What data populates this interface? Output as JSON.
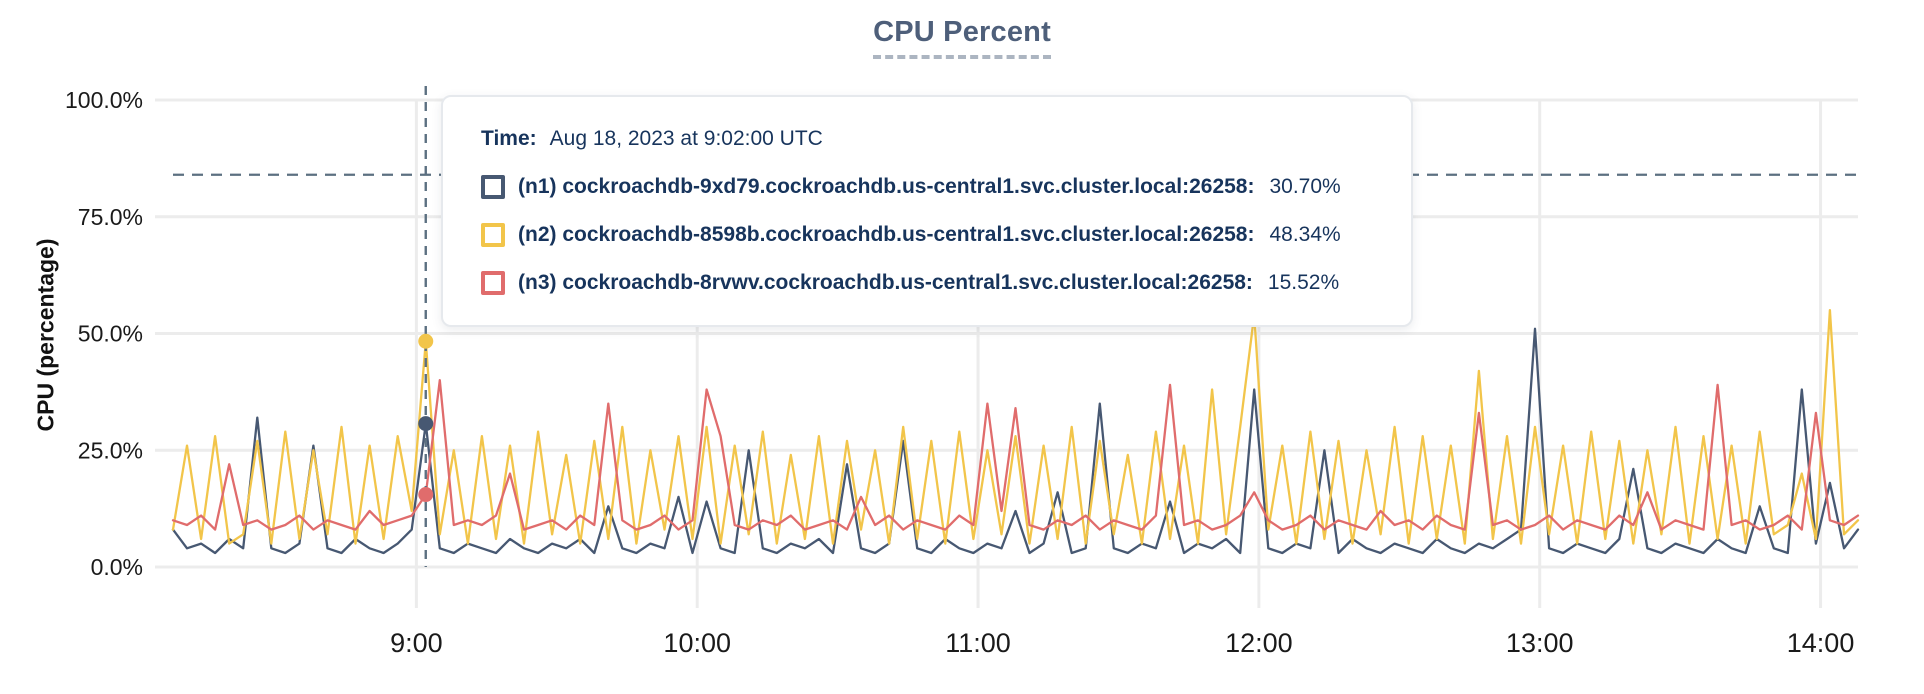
{
  "chart": {
    "title": "CPU Percent",
    "ylabel": "CPU (percentage)"
  },
  "colors": {
    "title": "#4E5F7A",
    "tooltip_text": "#17345C",
    "grid": "#ECECEC",
    "axis_text": "#1A1A1A",
    "dashed_guides": "#5C7081",
    "series_n1": "#475872",
    "series_n2": "#F2C54A",
    "series_n3": "#E06C6C"
  },
  "tooltip": {
    "time_label": "Time:",
    "time_value": "Aug 18, 2023 at 9:02:00 UTC",
    "rows": [
      {
        "node": "n1",
        "label": "(n1) cockroachdb-9xd79.cockroachdb.us-central1.svc.cluster.local:26258:",
        "value": "30.70%",
        "color": "#475872"
      },
      {
        "node": "n2",
        "label": "(n2) cockroachdb-8598b.cockroachdb.us-central1.svc.cluster.local:26258:",
        "value": "48.34%",
        "color": "#F2C54A"
      },
      {
        "node": "n3",
        "label": "(n3) cockroachdb-8rvwv.cockroachdb.us-central1.svc.cluster.local:26258:",
        "value": "15.52%",
        "color": "#E06C6C"
      }
    ]
  },
  "chart_data": {
    "type": "line",
    "title": "CPU Percent",
    "xlabel": "",
    "ylabel": "CPU (percentage)",
    "ylim": [
      0,
      100
    ],
    "grid": true,
    "legend_position": "tooltip-overlay",
    "y_ticks": [
      {
        "label": "0.0%",
        "value": 0
      },
      {
        "label": "25.0%",
        "value": 25
      },
      {
        "label": "50.0%",
        "value": 50
      },
      {
        "label": "75.0%",
        "value": 75
      },
      {
        "label": "100.0%",
        "value": 100
      }
    ],
    "x_start_time": "8:08",
    "x_end_time": "14:08",
    "total_minutes": 360,
    "step_minutes": 3,
    "x_ticks": [
      {
        "label": "9:00",
        "minute": 52
      },
      {
        "label": "10:00",
        "minute": 112
      },
      {
        "label": "11:00",
        "minute": 172
      },
      {
        "label": "12:00",
        "minute": 232
      },
      {
        "label": "13:00",
        "minute": 292
      },
      {
        "label": "14:00",
        "minute": 352
      }
    ],
    "threshold_line_percent": 84,
    "hover": {
      "time": "9:02:00 UTC",
      "minute": 54,
      "index": 18,
      "values": {
        "n1": 30.7,
        "n2": 48.34,
        "n3": 15.52
      }
    },
    "series": [
      {
        "id": "n1",
        "name": "(n1) cockroachdb-9xd79.cockroachdb.us-central1.svc.cluster.local:26258",
        "color": "#475872",
        "values": [
          8,
          4,
          5,
          3,
          6,
          4,
          32,
          4,
          3,
          5,
          26,
          4,
          3,
          6,
          4,
          3,
          5,
          8,
          30.7,
          4,
          3,
          5,
          4,
          3,
          6,
          4,
          3,
          5,
          4,
          6,
          3,
          13,
          4,
          3,
          5,
          4,
          15,
          3,
          14,
          4,
          3,
          25,
          4,
          3,
          5,
          4,
          6,
          3,
          22,
          4,
          3,
          5,
          27,
          4,
          3,
          6,
          4,
          3,
          5,
          4,
          12,
          3,
          5,
          16,
          3,
          4,
          35,
          4,
          3,
          5,
          4,
          14,
          3,
          5,
          4,
          6,
          3,
          38,
          4,
          3,
          5,
          4,
          25,
          3,
          6,
          4,
          3,
          5,
          4,
          3,
          6,
          4,
          3,
          5,
          4,
          6,
          8,
          51,
          4,
          3,
          5,
          4,
          3,
          6,
          21,
          4,
          3,
          5,
          4,
          3,
          6,
          4,
          3,
          13,
          4,
          3,
          38,
          5,
          18,
          4,
          8
        ]
      },
      {
        "id": "n2",
        "name": "(n2) cockroachdb-8598b.cockroachdb.us-central1.svc.cluster.local:26258",
        "color": "#F2C54A",
        "values": [
          8,
          26,
          6,
          28,
          5,
          7,
          27,
          5,
          29,
          6,
          25,
          7,
          30,
          5,
          26,
          6,
          28,
          12,
          48.34,
          7,
          25,
          5,
          28,
          6,
          26,
          5,
          29,
          7,
          24,
          5,
          27,
          6,
          30,
          5,
          25,
          8,
          28,
          6,
          30,
          5,
          26,
          7,
          29,
          5,
          24,
          6,
          28,
          5,
          27,
          8,
          25,
          5,
          30,
          6,
          27,
          5,
          29,
          6,
          25,
          7,
          28,
          5,
          26,
          6,
          30,
          5,
          27,
          7,
          24,
          5,
          29,
          6,
          26,
          5,
          38,
          7,
          30,
          54,
          8,
          26,
          5,
          29,
          6,
          27,
          5,
          25,
          7,
          30,
          5,
          28,
          6,
          26,
          5,
          42,
          6,
          28,
          5,
          30,
          7,
          26,
          5,
          29,
          6,
          27,
          5,
          25,
          7,
          30,
          5,
          28,
          6,
          26,
          5,
          29,
          7,
          9,
          20,
          6,
          55,
          7,
          10
        ]
      },
      {
        "id": "n3",
        "name": "(n3) cockroachdb-8rvwv.cockroachdb.us-central1.svc.cluster.local:26258",
        "color": "#E06C6C",
        "values": [
          10,
          9,
          11,
          8,
          22,
          9,
          10,
          8,
          9,
          11,
          8,
          10,
          9,
          8,
          12,
          9,
          10,
          11,
          15.52,
          40,
          9,
          10,
          9,
          11,
          20,
          8,
          9,
          10,
          8,
          11,
          9,
          35,
          10,
          8,
          9,
          11,
          8,
          10,
          38,
          28,
          9,
          8,
          10,
          9,
          11,
          8,
          9,
          10,
          8,
          15,
          9,
          11,
          8,
          10,
          9,
          8,
          11,
          9,
          35,
          12,
          34,
          9,
          8,
          10,
          9,
          11,
          8,
          10,
          9,
          8,
          11,
          39,
          9,
          10,
          8,
          9,
          11,
          16,
          10,
          8,
          9,
          11,
          8,
          10,
          9,
          8,
          12,
          9,
          10,
          8,
          11,
          9,
          8,
          33,
          9,
          10,
          8,
          9,
          11,
          8,
          10,
          9,
          8,
          11,
          9,
          16,
          8,
          10,
          9,
          8,
          39,
          9,
          10,
          8,
          9,
          11,
          8,
          33,
          10,
          9,
          11
        ]
      }
    ]
  }
}
